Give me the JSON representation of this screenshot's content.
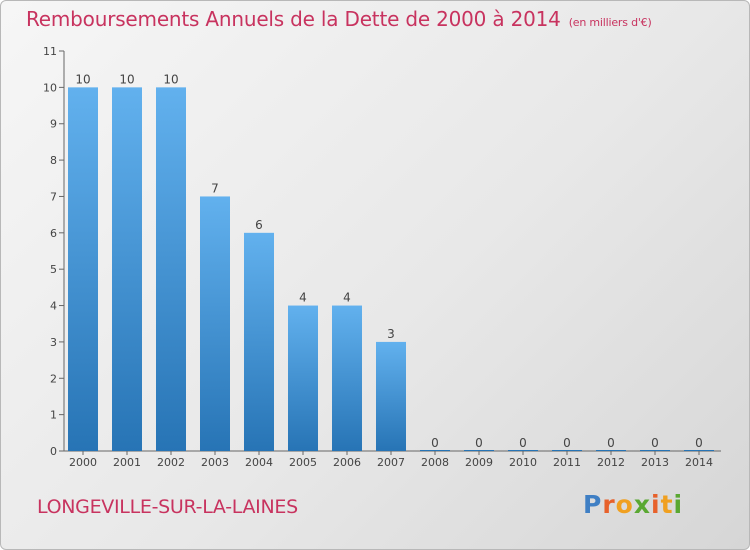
{
  "header": {
    "title": "Remboursements Annuels de la Dette de 2000 à 2014",
    "subtitle": "(en milliers d'€)"
  },
  "footer": {
    "commune": "LONGEVILLE-SUR-LA-LAINES",
    "logo": [
      "P",
      "r",
      "o",
      "x",
      "i",
      "t",
      "i"
    ]
  },
  "colors": {
    "title": "#c8335f",
    "bar_light": "#62b1ee",
    "bar_dark": "#2774b5",
    "logo": [
      "#3f7fc4",
      "#e7612b",
      "#f0a020",
      "#5aa832",
      "#e7612b",
      "#f0a020",
      "#5aa832"
    ]
  },
  "chart_data": {
    "type": "bar",
    "categories": [
      "2000",
      "2001",
      "2002",
      "2003",
      "2004",
      "2005",
      "2006",
      "2007",
      "2008",
      "2009",
      "2010",
      "2011",
      "2012",
      "2013",
      "2014"
    ],
    "values": [
      10,
      10,
      10,
      7,
      6,
      4,
      4,
      3,
      0,
      0,
      0,
      0,
      0,
      0,
      0
    ],
    "yticks": [
      0,
      1,
      2,
      3,
      4,
      5,
      6,
      7,
      8,
      9,
      10,
      11
    ],
    "ylim": [
      0,
      11
    ],
    "grid": false,
    "legend": "none"
  }
}
